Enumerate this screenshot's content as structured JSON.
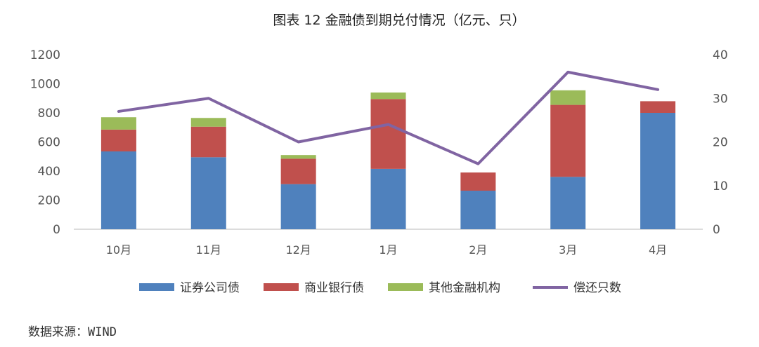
{
  "source_label": "数据来源：",
  "source_value": "WIND",
  "chart_data": {
    "type": "bar",
    "stacked": true,
    "title": "图表 12 金融债到期兑付情况（亿元、只）",
    "categories": [
      "10月",
      "11月",
      "12月",
      "1月",
      "2月",
      "3月",
      "4月"
    ],
    "series": [
      {
        "name": "证券公司债",
        "type": "bar",
        "axis": "left",
        "color": "#4F81BD",
        "values": [
          535,
          495,
          310,
          415,
          265,
          360,
          800
        ]
      },
      {
        "name": "商业银行债",
        "type": "bar",
        "axis": "left",
        "color": "#C0504D",
        "values": [
          150,
          210,
          175,
          480,
          125,
          495,
          80
        ]
      },
      {
        "name": "其他金融机构",
        "type": "bar",
        "axis": "left",
        "color": "#9BBB59",
        "values": [
          85,
          60,
          25,
          45,
          0,
          100,
          0
        ]
      },
      {
        "name": "偿还只数",
        "type": "line",
        "axis": "right",
        "color": "#8064A2",
        "values": [
          27,
          30,
          20,
          24,
          15,
          36,
          32
        ]
      }
    ],
    "yleft": {
      "min": 0,
      "max": 1200,
      "ticks": [
        "0",
        "200",
        "400",
        "600",
        "800",
        "1000",
        "1200"
      ]
    },
    "yright": {
      "min": 0,
      "max": 40,
      "ticks": [
        "0",
        "10",
        "20",
        "30",
        "40"
      ]
    },
    "grid": false,
    "legend_position": "bottom"
  }
}
